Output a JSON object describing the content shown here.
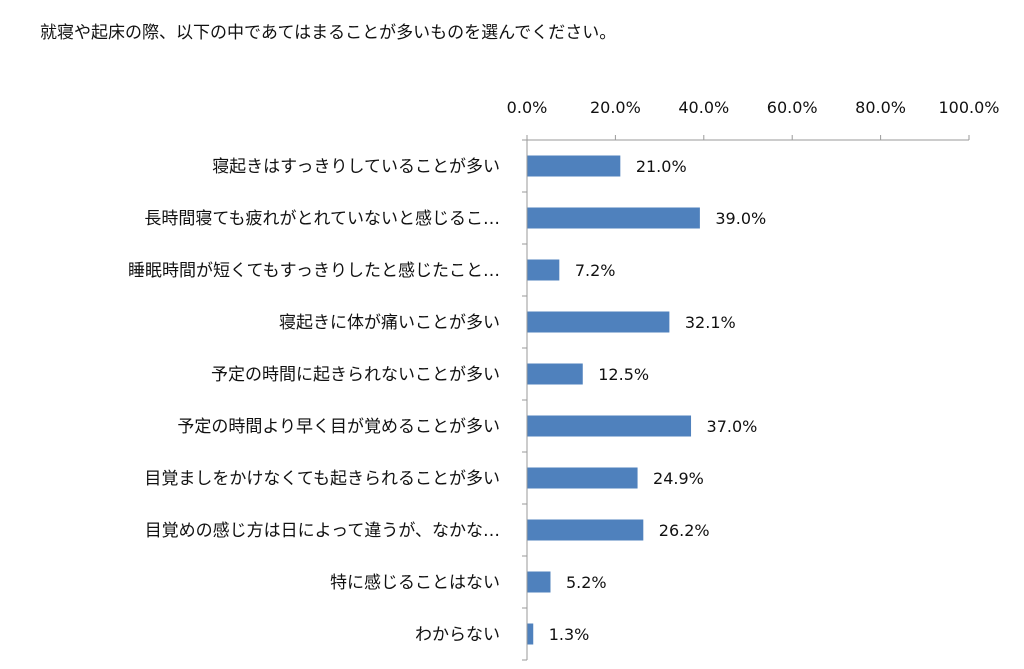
{
  "title": "就寝や起床の際、以下の中であてはまることが多いものを選んでください。",
  "chart_data": {
    "type": "bar",
    "orientation": "horizontal",
    "title": "就寝や起床の際、以下の中であてはまることが多いものを選んでください。",
    "categories": [
      "寝起きはすっきりしていることが多い",
      "長時間寝ても疲れがとれていないと感じるこ…",
      "睡眠時間が短くてもすっきりしたと感じたこと…",
      "寝起きに体が痛いことが多い",
      "予定の時間に起きられないことが多い",
      "予定の時間より早く目が覚めることが多い",
      "目覚ましをかけなくても起きられることが多い",
      "目覚めの感じ方は日によって違うが、なかな…",
      "特に感じることはない",
      "わからない"
    ],
    "values": [
      21.0,
      39.0,
      7.2,
      32.1,
      12.5,
      37.0,
      24.9,
      26.2,
      5.2,
      1.3
    ],
    "value_labels": [
      "21.0%",
      "39.0%",
      "7.2%",
      "32.1%",
      "12.5%",
      "37.0%",
      "24.9%",
      "26.2%",
      "5.2%",
      "1.3%"
    ],
    "x_ticks": [
      "0.0%",
      "20.0%",
      "40.0%",
      "60.0%",
      "80.0%",
      "100.0%"
    ],
    "xlim": [
      0,
      100
    ],
    "xaxis_position": "top",
    "grid": false,
    "bar_color": "#4f81bd"
  }
}
